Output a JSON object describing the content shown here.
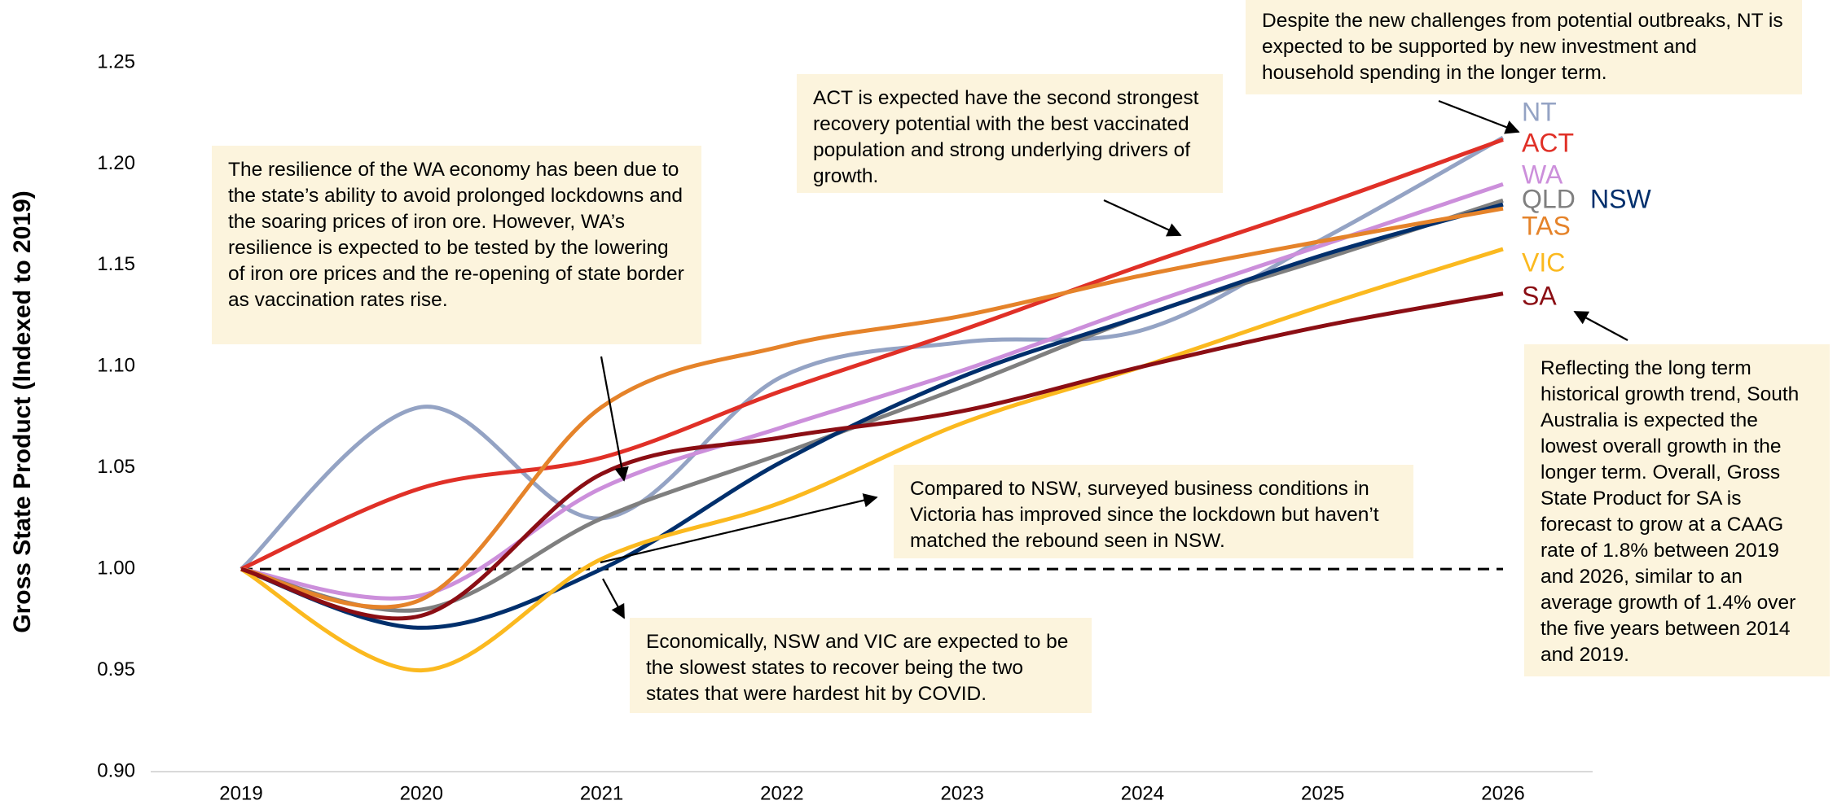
{
  "chart_data": {
    "type": "line",
    "y_label": "Gross State Product (Indexed to 2019)",
    "x": [
      2019,
      2020,
      2021,
      2022,
      2023,
      2024,
      2025,
      2026
    ],
    "xticks": [
      2019,
      2020,
      2021,
      2022,
      2023,
      2024,
      2025,
      2026
    ],
    "ylim": [
      0.9,
      1.25
    ],
    "yticks": [
      {
        "value": 0.9,
        "label": "0.90"
      },
      {
        "value": 0.95,
        "label": "0.95"
      },
      {
        "value": 1.0,
        "label": "1.00"
      },
      {
        "value": 1.05,
        "label": "1.05"
      },
      {
        "value": 1.1,
        "label": "1.10"
      },
      {
        "value": 1.15,
        "label": "1.15"
      },
      {
        "value": 1.2,
        "label": "1.20"
      },
      {
        "value": 1.25,
        "label": "1.25"
      }
    ],
    "reference_line": 1.0,
    "smooth": true,
    "series": [
      {
        "name": "NT",
        "color": "#94a3c4",
        "values": [
          1.0,
          1.08,
          1.025,
          1.095,
          1.112,
          1.118,
          1.163,
          1.213
        ]
      },
      {
        "name": "ACT",
        "color": "#e03027",
        "values": [
          1.0,
          1.04,
          1.055,
          1.088,
          1.118,
          1.15,
          1.18,
          1.212
        ]
      },
      {
        "name": "WA",
        "color": "#cc8fdb",
        "values": [
          1.0,
          0.987,
          1.04,
          1.07,
          1.098,
          1.13,
          1.16,
          1.19
        ]
      },
      {
        "name": "QLD",
        "color": "#7f7f7f",
        "values": [
          1.0,
          0.98,
          1.025,
          1.057,
          1.09,
          1.125,
          1.153,
          1.182
        ]
      },
      {
        "name": "NSW",
        "color": "#002f6c",
        "values": [
          1.0,
          0.971,
          1.0,
          1.053,
          1.095,
          1.125,
          1.155,
          1.18
        ]
      },
      {
        "name": "TAS",
        "color": "#e5832a",
        "values": [
          1.0,
          0.985,
          1.08,
          1.11,
          1.125,
          1.145,
          1.162,
          1.178
        ]
      },
      {
        "name": "VIC",
        "color": "#fbb91f",
        "values": [
          1.0,
          0.95,
          1.005,
          1.033,
          1.072,
          1.1,
          1.13,
          1.158
        ]
      },
      {
        "name": "SA",
        "color": "#8b0e14",
        "values": [
          1.0,
          0.977,
          1.047,
          1.065,
          1.078,
          1.1,
          1.12,
          1.136
        ]
      }
    ],
    "annotations": [
      "The resilience of the WA economy has been due to the state’s ability to avoid prolonged lockdowns and the soaring prices of iron ore. However, WA’s resilience is expected to be tested by the lowering of iron ore prices and the re-opening of state border as vaccination rates rise.",
      "ACT is expected have the second strongest recovery potential with the best vaccinated population and strong underlying drivers of growth.",
      "Despite the new challenges from potential outbreaks, NT is expected to be supported by new investment and household spending in the longer term.",
      "Reflecting the long term historical growth trend, South Australia is expected the lowest overall growth in the longer term. Overall, Gross State Product for SA is forecast to grow at a CAAG rate of 1.8% between 2019 and 2026, similar to an average growth of 1.4% over the five years between 2014 and 2019.",
      "Compared to NSW, surveyed business conditions in Victoria has improved since the lockdown but haven’t matched the rebound seen in NSW.",
      "Economically, NSW and VIC are expected to be the slowest states to recover being the two states that were hardest hit by COVID."
    ]
  }
}
